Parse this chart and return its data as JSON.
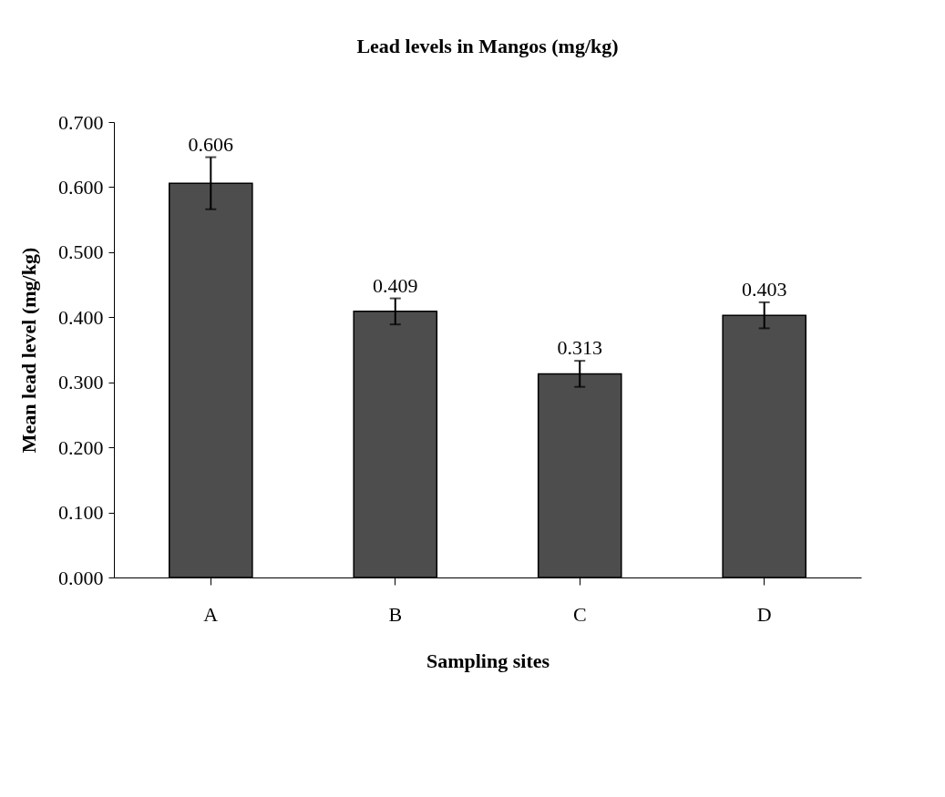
{
  "chart_data": {
    "type": "bar",
    "title": "Lead levels in Mangos (mg/kg)",
    "xlabel": "Sampling sites",
    "ylabel": "Mean lead level (mg/kg)",
    "categories": [
      "A",
      "B",
      "C",
      "D"
    ],
    "values": [
      0.606,
      0.409,
      0.313,
      0.403
    ],
    "errors": [
      0.04,
      0.02,
      0.02,
      0.02
    ],
    "color": "#4d4d4d",
    "data_labels": true,
    "ylim": [
      0,
      0.7
    ],
    "yticks": [
      {
        "value": 0,
        "label": "0.000"
      },
      {
        "value": 0.1,
        "label": "0.100"
      },
      {
        "value": 0.2,
        "label": "0.200"
      },
      {
        "value": 0.3,
        "label": "0.300"
      },
      {
        "value": 0.4,
        "label": "0.400"
      },
      {
        "value": 0.5,
        "label": "0.500"
      },
      {
        "value": 0.6,
        "label": "0.600"
      },
      {
        "value": 0.7,
        "label": "0.700"
      }
    ],
    "grid": false
  }
}
